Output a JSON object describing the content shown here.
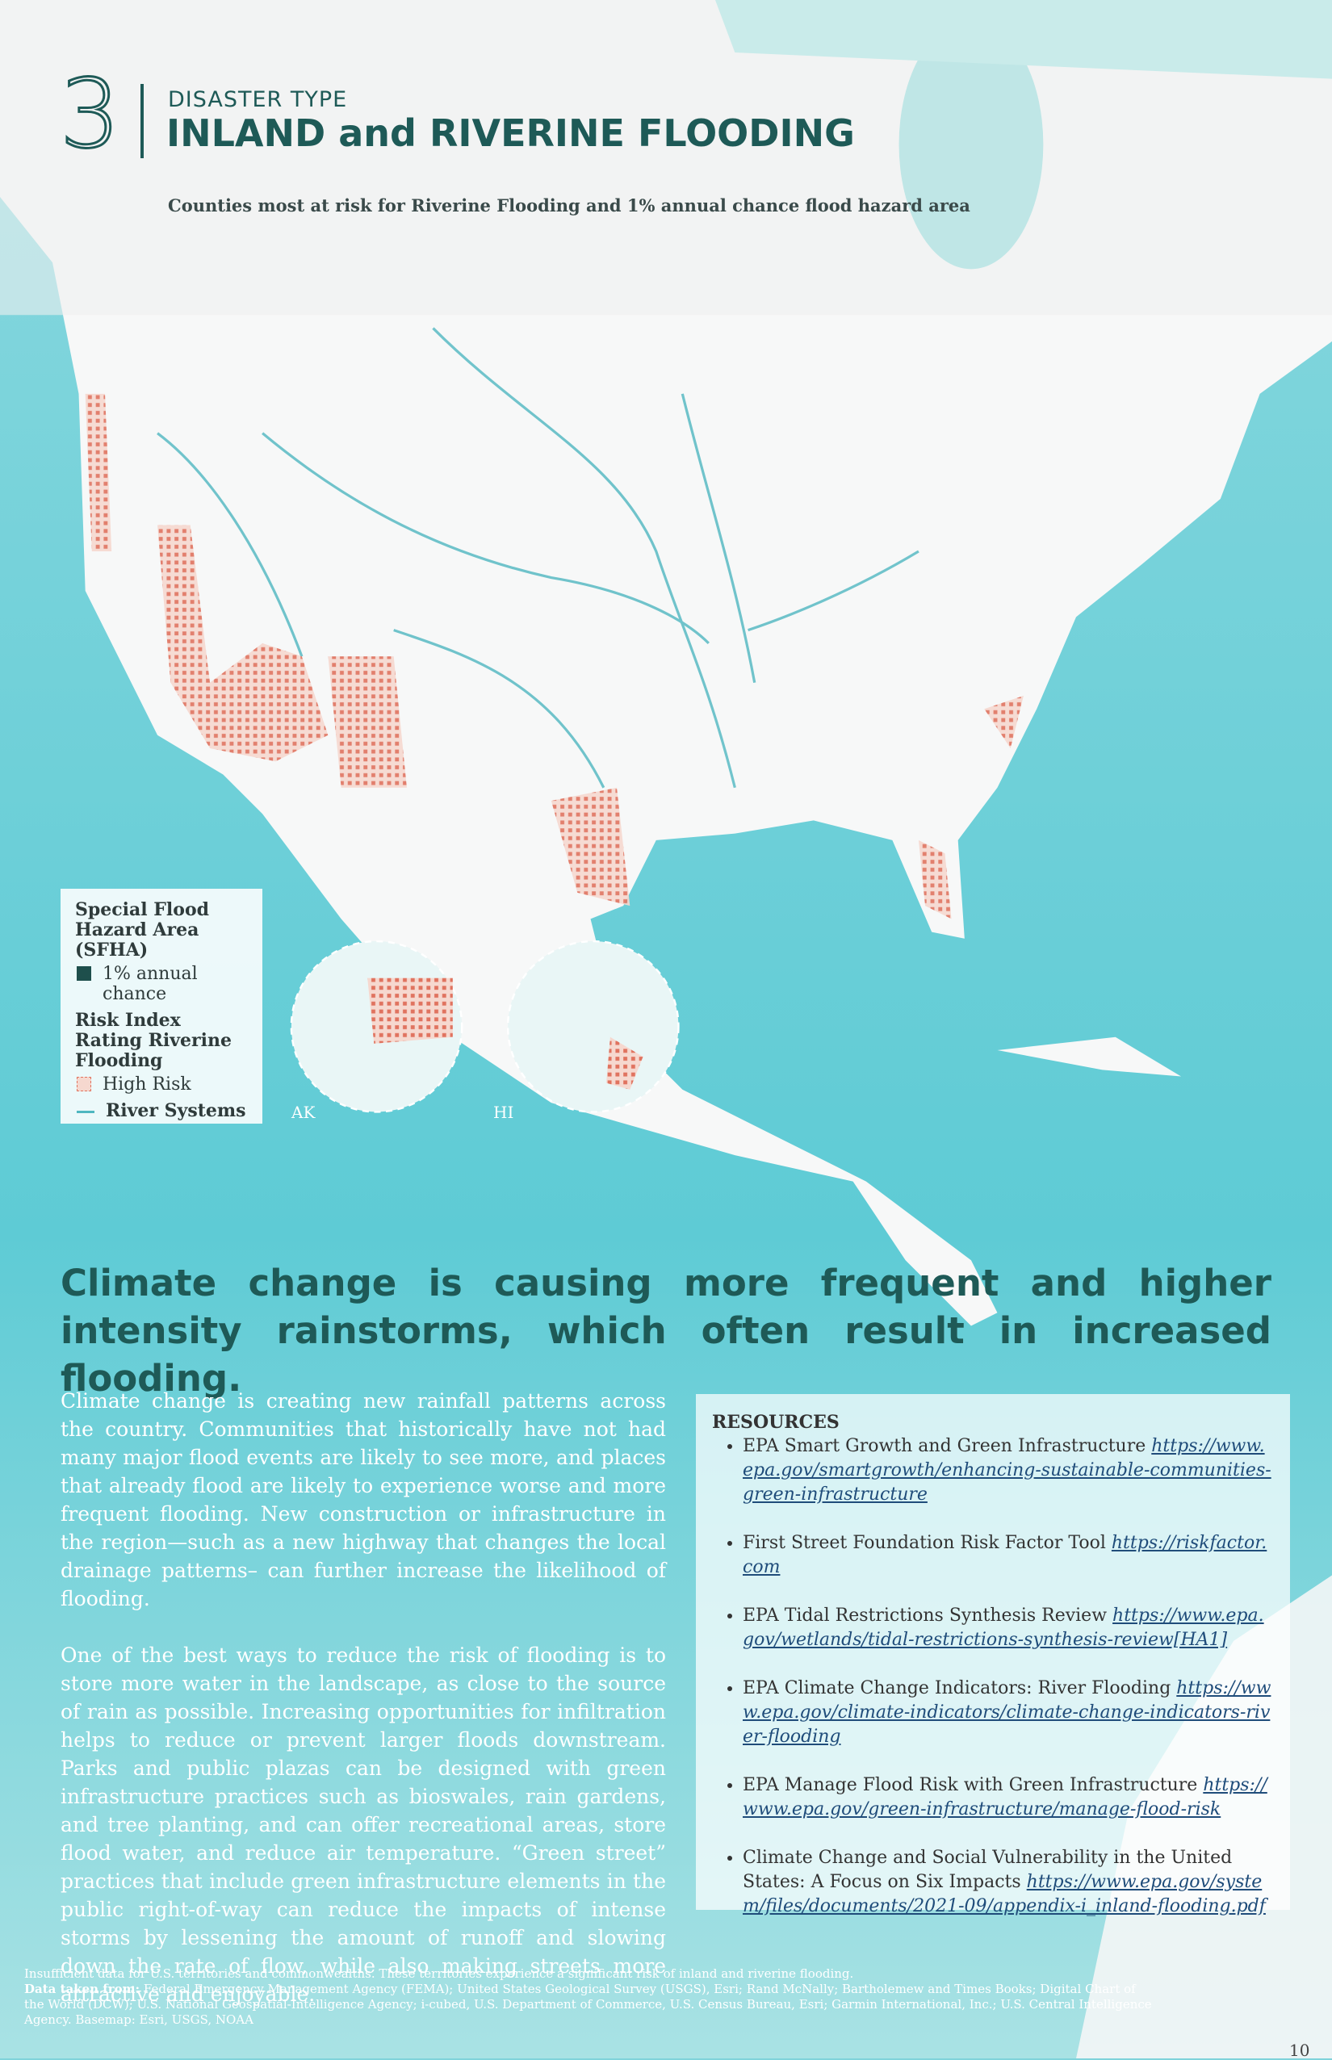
{
  "header": {
    "number": "3",
    "label": "DISASTER TYPE",
    "title": "INLAND and RIVERINE FLOODING"
  },
  "map": {
    "title": "Counties most at risk for Riverine Flooding and 1% annual chance flood hazard area",
    "legend": {
      "sfha_title": "Special Flood Hazard Area (SFHA)",
      "sfha_item": "1% annual chance",
      "risk_title": "Risk Index Rating Riverine Flooding",
      "risk_item": "High Risk",
      "river_item": "River Systems"
    },
    "insets": [
      "AK",
      "HI"
    ]
  },
  "headline": "Climate change is causing more frequent and higher intensity rainstorms, which often result in increased flooding.",
  "body": {
    "paragraphs": [
      "Climate change is creating new rainfall patterns across the country. Communities that historically have not had many major flood events are likely to see more, and places that already flood are likely to experience worse and more frequent flooding. New construction or infrastructure in the region—such as a new highway that changes the local drainage patterns– can further increase the likelihood of flooding.",
      "One of the best ways to reduce the risk of flooding is to store more water in the landscape, as close to the source of rain as possible. Increasing opportunities for infiltration helps to reduce or prevent larger floods downstream. Parks and public plazas can be designed with green infrastructure practices such as bioswales, rain gardens, and tree planting, and can offer recreational areas, store flood water, and reduce air temperature. “Green street” practices that include green infrastructure elements in the public right-of-way can reduce the impacts of intense storms by lessening the amount of runoff and slowing down the rate of flow, while also making streets more attractive and enjoyable."
    ]
  },
  "resources": {
    "title": "RESOURCES",
    "items": [
      {
        "text": "EPA Smart Growth and Green Infrastructure",
        "link": "https://www.epa.gov/smartgrowth/enhancing-sustainable-communities-green-infrastructure"
      },
      {
        "text": "First Street Foundation Risk Factor Tool",
        "link": "https://riskfactor.com"
      },
      {
        "text": "EPA Tidal Restrictions Synthesis Review",
        "link": "https://www.epa.gov/wetlands/tidal-restrictions-synthesis-review[HA1]"
      },
      {
        "text": "EPA Climate Change Indicators: River Flooding",
        "link": "https://www.epa.gov/climate-indicators/climate-change-indicators-river-flooding"
      },
      {
        "text": "EPA Manage Flood Risk with Green Infrastructure",
        "link": "https://www.epa.gov/green-infrastructure/manage-flood-risk"
      },
      {
        "text": "Climate Change and Social Vulnerability in the United States: A Focus on Six Impacts",
        "link": "https://www.epa.gov/system/files/documents/2021-09/appendix-i_inland-flooding.pdf"
      }
    ]
  },
  "footnotes": {
    "note": "Insufficient data for U.S. territories and commonwealths. These territories experience a significant risk of inland and riverine flooding.",
    "source_label": "Data taken from:",
    "source_text": "Federal Emergency Management Agency (FEMA); United States Geological Survey (USGS), Esri; Rand McNally; Bartholemew and Times Books; Digital Chart of the World (DCW); U.S. National Geospatial-Intelligence Agency; i-cubed, U.S. Department of Commerce, U.S. Census Bureau, Esri; Garmin International, Inc.; U.S. Central Intelligence Agency. Basemap: Esri, USGS, NOAA"
  },
  "page_number": "10"
}
